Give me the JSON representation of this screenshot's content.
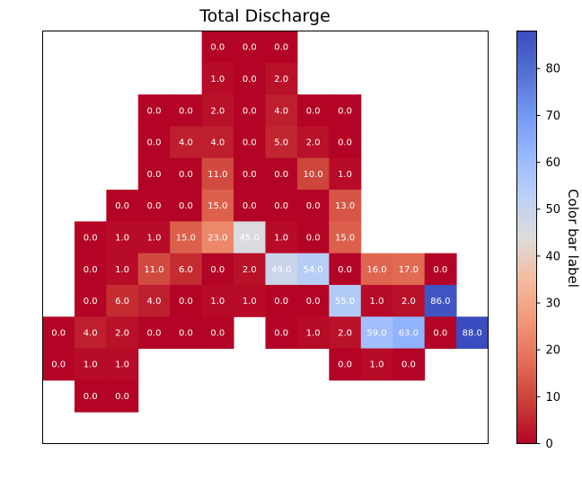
{
  "chart_data": {
    "type": "heatmap",
    "title": "Total Discharge",
    "colorbar_label": "Color bar label",
    "colormap": "coolwarm_r",
    "vmin": 0,
    "vmax": 88,
    "colorbar_ticks": [
      0,
      10,
      20,
      30,
      40,
      50,
      60,
      70,
      80
    ],
    "n_cols": 14,
    "n_rows": 13,
    "grid": false,
    "cells": [
      {
        "row": 0,
        "col": 5,
        "value": 0.0
      },
      {
        "row": 0,
        "col": 6,
        "value": 0.0
      },
      {
        "row": 0,
        "col": 7,
        "value": 0.0
      },
      {
        "row": 1,
        "col": 5,
        "value": 1.0
      },
      {
        "row": 1,
        "col": 6,
        "value": 0.0
      },
      {
        "row": 1,
        "col": 7,
        "value": 2.0
      },
      {
        "row": 2,
        "col": 3,
        "value": 0.0
      },
      {
        "row": 2,
        "col": 4,
        "value": 0.0
      },
      {
        "row": 2,
        "col": 5,
        "value": 2.0
      },
      {
        "row": 2,
        "col": 6,
        "value": 0.0
      },
      {
        "row": 2,
        "col": 7,
        "value": 4.0
      },
      {
        "row": 2,
        "col": 8,
        "value": 0.0
      },
      {
        "row": 2,
        "col": 9,
        "value": 0.0
      },
      {
        "row": 3,
        "col": 3,
        "value": 0.0
      },
      {
        "row": 3,
        "col": 4,
        "value": 4.0
      },
      {
        "row": 3,
        "col": 5,
        "value": 4.0
      },
      {
        "row": 3,
        "col": 6,
        "value": 0.0
      },
      {
        "row": 3,
        "col": 7,
        "value": 5.0
      },
      {
        "row": 3,
        "col": 8,
        "value": 2.0
      },
      {
        "row": 3,
        "col": 9,
        "value": 0.0
      },
      {
        "row": 4,
        "col": 3,
        "value": 0.0
      },
      {
        "row": 4,
        "col": 4,
        "value": 0.0
      },
      {
        "row": 4,
        "col": 5,
        "value": 11.0
      },
      {
        "row": 4,
        "col": 6,
        "value": 0.0
      },
      {
        "row": 4,
        "col": 7,
        "value": 0.0
      },
      {
        "row": 4,
        "col": 8,
        "value": 10.0
      },
      {
        "row": 4,
        "col": 9,
        "value": 1.0
      },
      {
        "row": 5,
        "col": 2,
        "value": 0.0
      },
      {
        "row": 5,
        "col": 3,
        "value": 0.0
      },
      {
        "row": 5,
        "col": 4,
        "value": 0.0
      },
      {
        "row": 5,
        "col": 5,
        "value": 15.0
      },
      {
        "row": 5,
        "col": 6,
        "value": 0.0
      },
      {
        "row": 5,
        "col": 7,
        "value": 0.0
      },
      {
        "row": 5,
        "col": 8,
        "value": 0.0
      },
      {
        "row": 5,
        "col": 9,
        "value": 13.0
      },
      {
        "row": 6,
        "col": 1,
        "value": 0.0
      },
      {
        "row": 6,
        "col": 2,
        "value": 1.0
      },
      {
        "row": 6,
        "col": 3,
        "value": 1.0
      },
      {
        "row": 6,
        "col": 4,
        "value": 15.0
      },
      {
        "row": 6,
        "col": 5,
        "value": 23.0
      },
      {
        "row": 6,
        "col": 6,
        "value": 45.0
      },
      {
        "row": 6,
        "col": 7,
        "value": 1.0
      },
      {
        "row": 6,
        "col": 8,
        "value": 0.0
      },
      {
        "row": 6,
        "col": 9,
        "value": 15.0
      },
      {
        "row": 7,
        "col": 1,
        "value": 0.0
      },
      {
        "row": 7,
        "col": 2,
        "value": 1.0
      },
      {
        "row": 7,
        "col": 3,
        "value": 11.0
      },
      {
        "row": 7,
        "col": 4,
        "value": 6.0
      },
      {
        "row": 7,
        "col": 5,
        "value": 0.0
      },
      {
        "row": 7,
        "col": 6,
        "value": 2.0
      },
      {
        "row": 7,
        "col": 7,
        "value": 49.0
      },
      {
        "row": 7,
        "col": 8,
        "value": 54.0
      },
      {
        "row": 7,
        "col": 9,
        "value": 0.0
      },
      {
        "row": 7,
        "col": 10,
        "value": 16.0
      },
      {
        "row": 7,
        "col": 11,
        "value": 17.0
      },
      {
        "row": 7,
        "col": 12,
        "value": 0.0
      },
      {
        "row": 8,
        "col": 1,
        "value": 0.0
      },
      {
        "row": 8,
        "col": 2,
        "value": 6.0
      },
      {
        "row": 8,
        "col": 3,
        "value": 4.0
      },
      {
        "row": 8,
        "col": 4,
        "value": 0.0
      },
      {
        "row": 8,
        "col": 5,
        "value": 1.0
      },
      {
        "row": 8,
        "col": 6,
        "value": 1.0
      },
      {
        "row": 8,
        "col": 7,
        "value": 0.0
      },
      {
        "row": 8,
        "col": 8,
        "value": 0.0
      },
      {
        "row": 8,
        "col": 9,
        "value": 55.0
      },
      {
        "row": 8,
        "col": 10,
        "value": 1.0
      },
      {
        "row": 8,
        "col": 11,
        "value": 2.0
      },
      {
        "row": 8,
        "col": 12,
        "value": 86.0
      },
      {
        "row": 9,
        "col": 0,
        "value": 0.0
      },
      {
        "row": 9,
        "col": 1,
        "value": 4.0
      },
      {
        "row": 9,
        "col": 2,
        "value": 2.0
      },
      {
        "row": 9,
        "col": 3,
        "value": 0.0
      },
      {
        "row": 9,
        "col": 4,
        "value": 0.0
      },
      {
        "row": 9,
        "col": 5,
        "value": 0.0
      },
      {
        "row": 9,
        "col": 7,
        "value": 0.0
      },
      {
        "row": 9,
        "col": 8,
        "value": 1.0
      },
      {
        "row": 9,
        "col": 9,
        "value": 2.0
      },
      {
        "row": 9,
        "col": 10,
        "value": 59.0
      },
      {
        "row": 9,
        "col": 11,
        "value": 63.0
      },
      {
        "row": 9,
        "col": 12,
        "value": 0.0
      },
      {
        "row": 9,
        "col": 13,
        "value": 88.0
      },
      {
        "row": 10,
        "col": 0,
        "value": 0.0
      },
      {
        "row": 10,
        "col": 1,
        "value": 1.0
      },
      {
        "row": 10,
        "col": 2,
        "value": 1.0
      },
      {
        "row": 10,
        "col": 9,
        "value": 0.0
      },
      {
        "row": 10,
        "col": 10,
        "value": 1.0
      },
      {
        "row": 10,
        "col": 11,
        "value": 0.0
      },
      {
        "row": 11,
        "col": 1,
        "value": 0.0
      },
      {
        "row": 11,
        "col": 2,
        "value": 0.0
      }
    ]
  }
}
